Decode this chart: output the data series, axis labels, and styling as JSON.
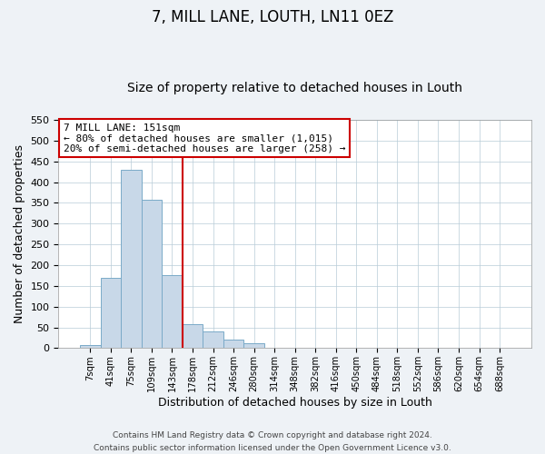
{
  "title": "7, MILL LANE, LOUTH, LN11 0EZ",
  "subtitle": "Size of property relative to detached houses in Louth",
  "xlabel": "Distribution of detached houses by size in Louth",
  "ylabel": "Number of detached properties",
  "bar_labels": [
    "7sqm",
    "41sqm",
    "75sqm",
    "109sqm",
    "143sqm",
    "178sqm",
    "212sqm",
    "246sqm",
    "280sqm",
    "314sqm",
    "348sqm",
    "382sqm",
    "416sqm",
    "450sqm",
    "484sqm",
    "518sqm",
    "552sqm",
    "586sqm",
    "620sqm",
    "654sqm",
    "688sqm"
  ],
  "bar_heights": [
    8,
    170,
    430,
    357,
    176,
    57,
    40,
    21,
    12,
    2,
    0,
    0,
    1,
    0,
    0,
    0,
    0,
    0,
    0,
    1,
    0
  ],
  "bar_color": "#c8d8e8",
  "bar_edge_color": "#7aaac8",
  "vline_color": "#cc0000",
  "ylim": [
    0,
    550
  ],
  "yticks": [
    0,
    50,
    100,
    150,
    200,
    250,
    300,
    350,
    400,
    450,
    500,
    550
  ],
  "annotation_title": "7 MILL LANE: 151sqm",
  "annotation_line1": "← 80% of detached houses are smaller (1,015)",
  "annotation_line2": "20% of semi-detached houses are larger (258) →",
  "footer_line1": "Contains HM Land Registry data © Crown copyright and database right 2024.",
  "footer_line2": "Contains public sector information licensed under the Open Government Licence v3.0.",
  "background_color": "#eef2f6",
  "plot_background_color": "#ffffff",
  "grid_color": "#b8ccd8",
  "title_fontsize": 12,
  "subtitle_fontsize": 10,
  "annotation_box_color": "#ffffff",
  "annotation_box_edge": "#cc0000",
  "footer_fontsize": 6.5
}
